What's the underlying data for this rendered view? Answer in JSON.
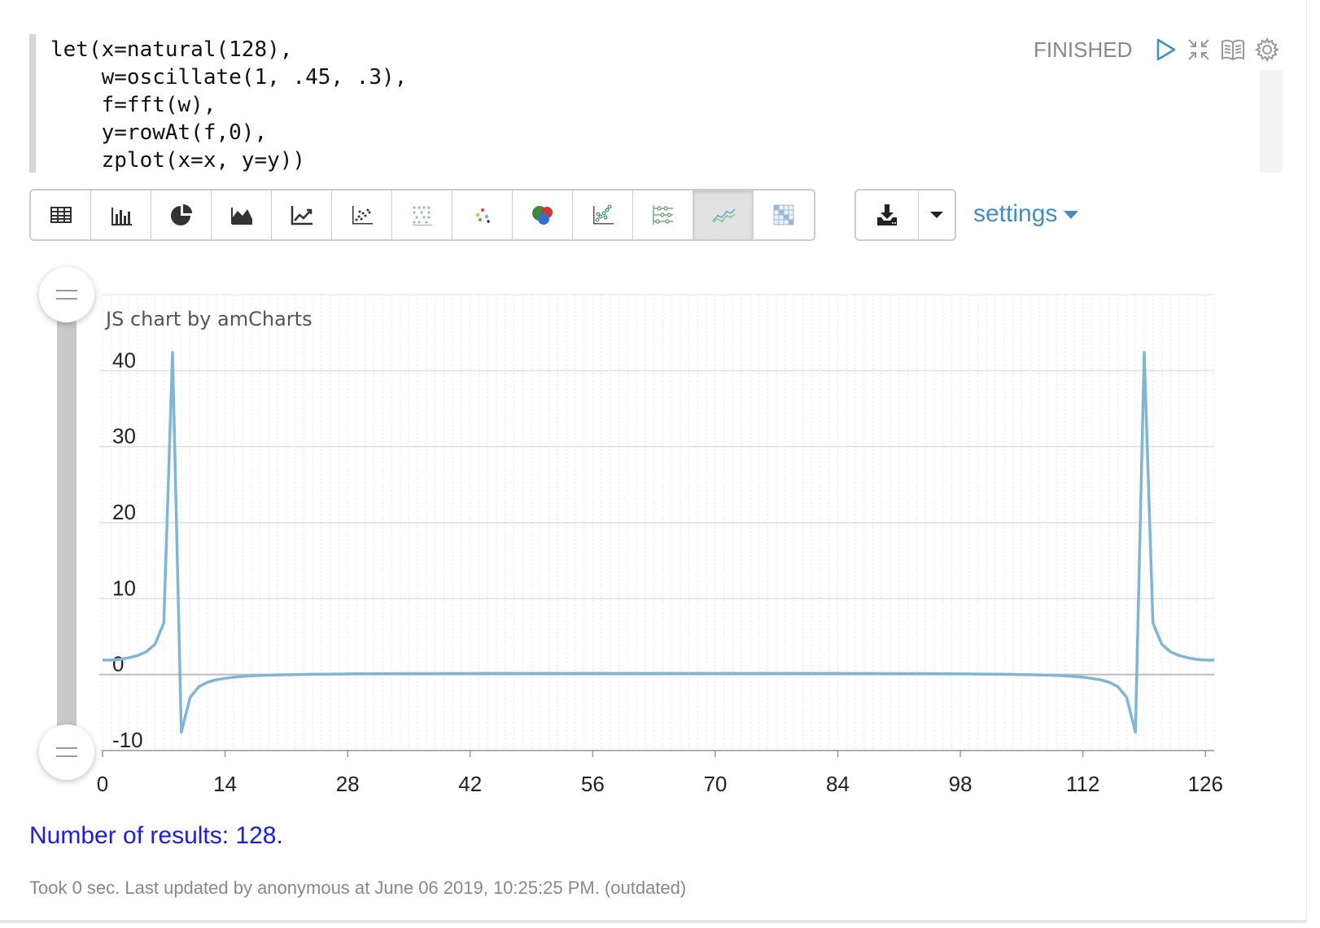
{
  "editor": {
    "code_lines": [
      "let(x=natural(128),",
      "    w=oscillate(1, .45, .3),",
      "    f=fft(w),",
      "    y=rowAt(f,0),",
      "    zplot(x=x, y=y))"
    ]
  },
  "paragraph_controls": {
    "status": "FINISHED",
    "icons": [
      "play-icon",
      "collapse-icon",
      "book-icon",
      "gear-icon"
    ]
  },
  "visualization_toolbar": {
    "buttons": [
      {
        "name": "table-icon",
        "active": false
      },
      {
        "name": "bar-chart-icon",
        "active": false
      },
      {
        "name": "pie-chart-icon",
        "active": false
      },
      {
        "name": "area-chart-icon",
        "active": false
      },
      {
        "name": "line-chart-icon",
        "active": false
      },
      {
        "name": "scatter-chart-icon",
        "active": false
      },
      {
        "name": "dot-grid-icon",
        "active": false
      },
      {
        "name": "scatter-colored-icon",
        "active": false
      },
      {
        "name": "bubble-chart-icon",
        "active": false
      },
      {
        "name": "scatter-trend-icon",
        "active": false
      },
      {
        "name": "range-chart-icon",
        "active": false
      },
      {
        "name": "multi-line-icon",
        "active": true
      },
      {
        "name": "heatmap-icon",
        "active": false
      }
    ],
    "download_icon": "download-icon",
    "dropdown_icon": "caret-down-icon",
    "settings_label": "settings"
  },
  "chart_data": {
    "type": "line",
    "credit": "JS chart by amCharts",
    "x_ticks": [
      "0",
      "14",
      "28",
      "42",
      "56",
      "70",
      "84",
      "98",
      "112",
      "126"
    ],
    "y_ticks": [
      "40",
      "30",
      "20",
      "10",
      "0",
      "-10"
    ],
    "xlim": [
      0,
      127
    ],
    "ylim": [
      -10,
      50
    ],
    "line_color": "#7fb6d6",
    "grid": true,
    "x": [
      0,
      1,
      2,
      3,
      4,
      5,
      6,
      7,
      8,
      9,
      10,
      11,
      12,
      13,
      14,
      15,
      16,
      17,
      18,
      19,
      20,
      21,
      22,
      23,
      24,
      25,
      26,
      27,
      28,
      29,
      30,
      31,
      32,
      33,
      34,
      35,
      36,
      37,
      38,
      39,
      40,
      41,
      42,
      43,
      44,
      45,
      46,
      47,
      48,
      49,
      50,
      51,
      52,
      53,
      54,
      55,
      56,
      57,
      58,
      59,
      60,
      61,
      62,
      63,
      64,
      65,
      66,
      67,
      68,
      69,
      70,
      71,
      72,
      73,
      74,
      75,
      76,
      77,
      78,
      79,
      80,
      81,
      82,
      83,
      84,
      85,
      86,
      87,
      88,
      89,
      90,
      91,
      92,
      93,
      94,
      95,
      96,
      97,
      98,
      99,
      100,
      101,
      102,
      103,
      104,
      105,
      106,
      107,
      108,
      109,
      110,
      111,
      112,
      113,
      114,
      115,
      116,
      117,
      118,
      119,
      120,
      121,
      122,
      123,
      124,
      125,
      126,
      127
    ],
    "y": [
      1.9,
      1.9,
      2.0,
      2.2,
      2.5,
      3.0,
      4.0,
      6.8,
      42.4,
      -7.6,
      -3.0,
      -1.6,
      -1.0,
      -0.7,
      -0.5,
      -0.35,
      -0.25,
      -0.18,
      -0.12,
      -0.08,
      -0.05,
      -0.02,
      0.0,
      0.02,
      0.04,
      0.05,
      0.06,
      0.07,
      0.08,
      0.09,
      0.1,
      0.1,
      0.11,
      0.11,
      0.12,
      0.12,
      0.13,
      0.13,
      0.13,
      0.14,
      0.14,
      0.14,
      0.14,
      0.15,
      0.15,
      0.15,
      0.15,
      0.15,
      0.15,
      0.16,
      0.16,
      0.16,
      0.16,
      0.16,
      0.16,
      0.16,
      0.16,
      0.16,
      0.16,
      0.16,
      0.16,
      0.16,
      0.16,
      0.16,
      0.16,
      0.16,
      0.16,
      0.16,
      0.16,
      0.16,
      0.16,
      0.16,
      0.16,
      0.16,
      0.16,
      0.16,
      0.16,
      0.16,
      0.16,
      0.15,
      0.15,
      0.15,
      0.15,
      0.15,
      0.15,
      0.14,
      0.14,
      0.14,
      0.14,
      0.13,
      0.13,
      0.13,
      0.12,
      0.12,
      0.11,
      0.11,
      0.1,
      0.1,
      0.09,
      0.08,
      0.07,
      0.06,
      0.05,
      0.04,
      0.02,
      0.0,
      -0.02,
      -0.05,
      -0.08,
      -0.12,
      -0.18,
      -0.25,
      -0.35,
      -0.5,
      -0.7,
      -1.0,
      -1.6,
      -3.0,
      -7.6,
      42.4,
      6.8,
      4.0,
      3.0,
      2.5,
      2.2,
      2.0,
      1.9,
      1.9
    ]
  },
  "results": {
    "label": "Number of results: 128."
  },
  "footer": {
    "text": "Took 0 sec. Last updated by anonymous at June 06 2019, 10:25:25 PM. (outdated)"
  }
}
